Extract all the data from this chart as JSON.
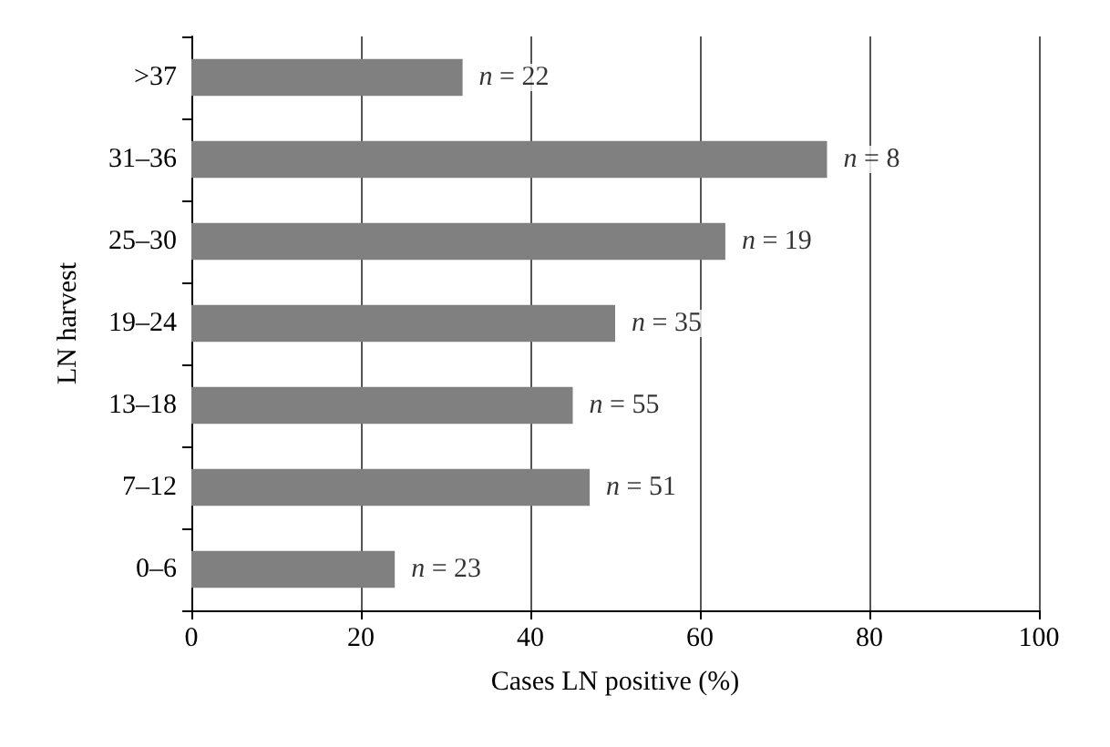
{
  "chart_data": {
    "type": "bar",
    "orientation": "horizontal",
    "xlabel": "Cases LN positive (%)",
    "ylabel": "LN harvest",
    "categories": [
      ">37",
      "31–36",
      "25–30",
      "19–24",
      "13–18",
      "7–12",
      "0–6"
    ],
    "values": [
      32,
      75,
      63,
      50,
      45,
      47,
      24
    ],
    "annotations": [
      {
        "text": "n = 22",
        "x": 32,
        "y": ">37"
      },
      {
        "text": "n = 8",
        "x": 75,
        "y": "31–36"
      },
      {
        "text": "n = 19",
        "x": 63,
        "y": "25–30"
      },
      {
        "text": "n = 35",
        "x": 50,
        "y": "19–24"
      },
      {
        "text": "n = 55",
        "x": 45,
        "y": "13–18"
      },
      {
        "text": "n = 51",
        "x": 47,
        "y": "7–12"
      },
      {
        "text": "n = 23",
        "x": 24,
        "y": "0–6"
      }
    ],
    "color": "#808080",
    "xlim": [
      0,
      100
    ],
    "xticks": [
      0,
      20,
      40,
      60,
      80,
      100
    ],
    "grid": "x"
  }
}
